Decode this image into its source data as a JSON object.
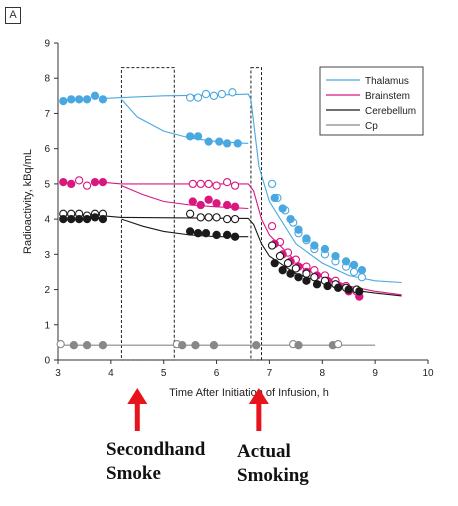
{
  "panel_label": "A",
  "annotations": {
    "secondhand": "Secondhand\nSmoke",
    "actual": "Actual\nSmoking"
  },
  "colors": {
    "thalamus": "#4aa8e0",
    "brainstem": "#d9177f",
    "cerebellum": "#1a1a1a",
    "cp": "#888888",
    "arrow": "#e8141c"
  },
  "chart_data": {
    "type": "scatter",
    "title": "",
    "xlabel": "Time After Initiation of Infusion, h",
    "ylabel": "Radioactivity, kBq/mL",
    "xlim": [
      3,
      10
    ],
    "ylim": [
      0,
      9
    ],
    "xticks": [
      3,
      4,
      5,
      6,
      7,
      8,
      9,
      10
    ],
    "yticks": [
      0,
      1,
      2,
      3,
      4,
      5,
      6,
      7,
      8,
      9
    ],
    "legend": {
      "position": "top-right"
    },
    "grid": false,
    "exposure_windows": [
      {
        "name": "Secondhand Smoke",
        "x": [
          4.2,
          5.2
        ]
      },
      {
        "name": "Actual Smoking",
        "x": [
          6.65,
          6.85
        ]
      }
    ],
    "series": [
      {
        "name": "Thalamus",
        "color": "#4aa8e0",
        "fit_baseline": [
          [
            3.8,
            7.42
          ],
          [
            4.2,
            7.45
          ],
          [
            5.0,
            7.5
          ],
          [
            6.0,
            7.52
          ],
          [
            6.6,
            7.55
          ],
          [
            6.65,
            7.4
          ],
          [
            6.8,
            5.5
          ],
          [
            7.0,
            4.5
          ],
          [
            7.5,
            3.3
          ],
          [
            8.0,
            2.75
          ],
          [
            8.5,
            2.4
          ],
          [
            9.0,
            2.25
          ],
          [
            9.5,
            2.2
          ]
        ],
        "fit_exposure": [
          [
            4.2,
            7.4
          ],
          [
            4.5,
            6.9
          ],
          [
            5.0,
            6.5
          ],
          [
            5.5,
            6.3
          ],
          [
            6.0,
            6.2
          ],
          [
            6.6,
            6.15
          ]
        ],
        "points": [
          {
            "x": 3.1,
            "y": 7.35,
            "f": 1
          },
          {
            "x": 3.25,
            "y": 7.4,
            "f": 1
          },
          {
            "x": 3.4,
            "y": 7.4,
            "f": 1
          },
          {
            "x": 3.55,
            "y": 7.4,
            "f": 1
          },
          {
            "x": 3.7,
            "y": 7.5,
            "f": 1
          },
          {
            "x": 3.85,
            "y": 7.4,
            "f": 1
          },
          {
            "x": 5.5,
            "y": 7.45,
            "f": 0
          },
          {
            "x": 5.65,
            "y": 7.45,
            "f": 0
          },
          {
            "x": 5.8,
            "y": 7.55,
            "f": 0
          },
          {
            "x": 5.95,
            "y": 7.5,
            "f": 0
          },
          {
            "x": 6.1,
            "y": 7.55,
            "f": 0
          },
          {
            "x": 6.3,
            "y": 7.6,
            "f": 0
          },
          {
            "x": 5.5,
            "y": 6.35,
            "f": 1
          },
          {
            "x": 5.65,
            "y": 6.35,
            "f": 1
          },
          {
            "x": 5.85,
            "y": 6.2,
            "f": 1
          },
          {
            "x": 6.05,
            "y": 6.2,
            "f": 1
          },
          {
            "x": 6.2,
            "y": 6.15,
            "f": 1
          },
          {
            "x": 6.4,
            "y": 6.15,
            "f": 1
          },
          {
            "x": 7.05,
            "y": 5.0,
            "f": 0
          },
          {
            "x": 7.15,
            "y": 4.6,
            "f": 0
          },
          {
            "x": 7.3,
            "y": 4.25,
            "f": 0
          },
          {
            "x": 7.45,
            "y": 3.9,
            "f": 0
          },
          {
            "x": 7.55,
            "y": 3.6,
            "f": 0
          },
          {
            "x": 7.7,
            "y": 3.4,
            "f": 0
          },
          {
            "x": 7.85,
            "y": 3.15,
            "f": 0
          },
          {
            "x": 8.05,
            "y": 3.0,
            "f": 0
          },
          {
            "x": 8.25,
            "y": 2.8,
            "f": 0
          },
          {
            "x": 8.45,
            "y": 2.65,
            "f": 0
          },
          {
            "x": 8.6,
            "y": 2.5,
            "f": 0
          },
          {
            "x": 8.75,
            "y": 2.35,
            "f": 0
          },
          {
            "x": 7.1,
            "y": 4.6,
            "f": 1
          },
          {
            "x": 7.25,
            "y": 4.3,
            "f": 1
          },
          {
            "x": 7.4,
            "y": 4.0,
            "f": 1
          },
          {
            "x": 7.55,
            "y": 3.7,
            "f": 1
          },
          {
            "x": 7.7,
            "y": 3.45,
            "f": 1
          },
          {
            "x": 7.85,
            "y": 3.25,
            "f": 1
          },
          {
            "x": 8.05,
            "y": 3.15,
            "f": 1
          },
          {
            "x": 8.25,
            "y": 2.95,
            "f": 1
          },
          {
            "x": 8.45,
            "y": 2.8,
            "f": 1
          },
          {
            "x": 8.6,
            "y": 2.7,
            "f": 1
          },
          {
            "x": 8.75,
            "y": 2.55,
            "f": 1
          }
        ]
      },
      {
        "name": "Brainstem",
        "color": "#d9177f",
        "fit_baseline": [
          [
            3.8,
            5.05
          ],
          [
            4.2,
            5.0
          ],
          [
            6.6,
            5.0
          ],
          [
            6.7,
            4.8
          ],
          [
            6.85,
            4.0
          ],
          [
            7.0,
            3.55
          ],
          [
            7.5,
            2.8
          ],
          [
            8.0,
            2.4
          ],
          [
            8.5,
            2.1
          ],
          [
            9.0,
            1.95
          ],
          [
            9.5,
            1.85
          ]
        ],
        "fit_exposure": [
          [
            4.2,
            4.95
          ],
          [
            4.6,
            4.7
          ],
          [
            5.0,
            4.5
          ],
          [
            5.5,
            4.4
          ],
          [
            6.0,
            4.35
          ],
          [
            6.6,
            4.3
          ]
        ],
        "points": [
          {
            "x": 3.1,
            "y": 5.05,
            "f": 1
          },
          {
            "x": 3.25,
            "y": 5.0,
            "f": 1
          },
          {
            "x": 3.4,
            "y": 5.1,
            "f": 0
          },
          {
            "x": 3.55,
            "y": 4.95,
            "f": 0
          },
          {
            "x": 3.7,
            "y": 5.05,
            "f": 1
          },
          {
            "x": 3.85,
            "y": 5.05,
            "f": 1
          },
          {
            "x": 5.55,
            "y": 5.0,
            "f": 0
          },
          {
            "x": 5.7,
            "y": 5.0,
            "f": 0
          },
          {
            "x": 5.85,
            "y": 5.0,
            "f": 0
          },
          {
            "x": 6.0,
            "y": 4.95,
            "f": 0
          },
          {
            "x": 6.2,
            "y": 5.05,
            "f": 0
          },
          {
            "x": 6.35,
            "y": 4.95,
            "f": 0
          },
          {
            "x": 5.55,
            "y": 4.5,
            "f": 1
          },
          {
            "x": 5.7,
            "y": 4.4,
            "f": 1
          },
          {
            "x": 5.85,
            "y": 4.55,
            "f": 1
          },
          {
            "x": 6.0,
            "y": 4.45,
            "f": 1
          },
          {
            "x": 6.2,
            "y": 4.4,
            "f": 1
          },
          {
            "x": 6.35,
            "y": 4.35,
            "f": 1
          },
          {
            "x": 7.05,
            "y": 3.8,
            "f": 0
          },
          {
            "x": 7.2,
            "y": 3.35,
            "f": 0
          },
          {
            "x": 7.35,
            "y": 3.05,
            "f": 0
          },
          {
            "x": 7.5,
            "y": 2.85,
            "f": 0
          },
          {
            "x": 7.7,
            "y": 2.65,
            "f": 0
          },
          {
            "x": 7.85,
            "y": 2.55,
            "f": 0
          },
          {
            "x": 8.05,
            "y": 2.4,
            "f": 0
          },
          {
            "x": 8.25,
            "y": 2.25,
            "f": 0
          },
          {
            "x": 8.45,
            "y": 2.1,
            "f": 0
          },
          {
            "x": 8.65,
            "y": 1.95,
            "f": 0
          },
          {
            "x": 7.1,
            "y": 3.3,
            "f": 1
          },
          {
            "x": 7.25,
            "y": 3.0,
            "f": 1
          },
          {
            "x": 7.4,
            "y": 2.8,
            "f": 1
          },
          {
            "x": 7.55,
            "y": 2.65,
            "f": 1
          },
          {
            "x": 7.7,
            "y": 2.5,
            "f": 1
          },
          {
            "x": 7.9,
            "y": 2.4,
            "f": 1
          },
          {
            "x": 8.1,
            "y": 2.25,
            "f": 1
          },
          {
            "x": 8.3,
            "y": 2.1,
            "f": 1
          },
          {
            "x": 8.5,
            "y": 1.95,
            "f": 1
          },
          {
            "x": 8.7,
            "y": 1.8,
            "f": 1
          }
        ]
      },
      {
        "name": "Cerebellum",
        "color": "#1a1a1a",
        "fit_baseline": [
          [
            3.8,
            4.1
          ],
          [
            4.2,
            4.05
          ],
          [
            6.6,
            4.02
          ],
          [
            6.7,
            3.85
          ],
          [
            6.85,
            3.3
          ],
          [
            7.0,
            2.95
          ],
          [
            7.5,
            2.45
          ],
          [
            8.0,
            2.2
          ],
          [
            8.5,
            2.0
          ],
          [
            9.0,
            1.9
          ],
          [
            9.5,
            1.82
          ]
        ],
        "fit_exposure": [
          [
            4.2,
            4.0
          ],
          [
            4.6,
            3.8
          ],
          [
            5.0,
            3.65
          ],
          [
            5.5,
            3.55
          ],
          [
            6.0,
            3.5
          ],
          [
            6.6,
            3.5
          ]
        ],
        "points": [
          {
            "x": 3.1,
            "y": 4.15,
            "f": 0
          },
          {
            "x": 3.25,
            "y": 4.15,
            "f": 0
          },
          {
            "x": 3.4,
            "y": 4.15,
            "f": 0
          },
          {
            "x": 3.55,
            "y": 4.1,
            "f": 0
          },
          {
            "x": 3.7,
            "y": 4.15,
            "f": 0
          },
          {
            "x": 3.85,
            "y": 4.15,
            "f": 0
          },
          {
            "x": 3.1,
            "y": 4.0,
            "f": 1
          },
          {
            "x": 3.25,
            "y": 4.0,
            "f": 1
          },
          {
            "x": 3.4,
            "y": 4.0,
            "f": 1
          },
          {
            "x": 3.55,
            "y": 4.0,
            "f": 1
          },
          {
            "x": 3.7,
            "y": 4.05,
            "f": 1
          },
          {
            "x": 3.85,
            "y": 4.0,
            "f": 1
          },
          {
            "x": 5.5,
            "y": 4.15,
            "f": 0
          },
          {
            "x": 5.7,
            "y": 4.05,
            "f": 0
          },
          {
            "x": 5.85,
            "y": 4.05,
            "f": 0
          },
          {
            "x": 6.0,
            "y": 4.05,
            "f": 0
          },
          {
            "x": 6.2,
            "y": 4.0,
            "f": 0
          },
          {
            "x": 6.35,
            "y": 4.0,
            "f": 0
          },
          {
            "x": 5.5,
            "y": 3.65,
            "f": 1
          },
          {
            "x": 5.65,
            "y": 3.6,
            "f": 1
          },
          {
            "x": 5.8,
            "y": 3.6,
            "f": 1
          },
          {
            "x": 6.0,
            "y": 3.55,
            "f": 1
          },
          {
            "x": 6.2,
            "y": 3.55,
            "f": 1
          },
          {
            "x": 6.35,
            "y": 3.5,
            "f": 1
          },
          {
            "x": 7.05,
            "y": 3.25,
            "f": 0
          },
          {
            "x": 7.2,
            "y": 2.95,
            "f": 0
          },
          {
            "x": 7.35,
            "y": 2.75,
            "f": 0
          },
          {
            "x": 7.5,
            "y": 2.6,
            "f": 0
          },
          {
            "x": 7.7,
            "y": 2.45,
            "f": 0
          },
          {
            "x": 7.85,
            "y": 2.35,
            "f": 0
          },
          {
            "x": 8.05,
            "y": 2.25,
            "f": 0
          },
          {
            "x": 8.25,
            "y": 2.15,
            "f": 0
          },
          {
            "x": 8.45,
            "y": 2.05,
            "f": 0
          },
          {
            "x": 8.65,
            "y": 2.0,
            "f": 0
          },
          {
            "x": 7.1,
            "y": 2.75,
            "f": 1
          },
          {
            "x": 7.25,
            "y": 2.55,
            "f": 1
          },
          {
            "x": 7.4,
            "y": 2.45,
            "f": 1
          },
          {
            "x": 7.55,
            "y": 2.35,
            "f": 1
          },
          {
            "x": 7.7,
            "y": 2.25,
            "f": 1
          },
          {
            "x": 7.9,
            "y": 2.15,
            "f": 1
          },
          {
            "x": 8.1,
            "y": 2.1,
            "f": 1
          },
          {
            "x": 8.3,
            "y": 2.05,
            "f": 1
          },
          {
            "x": 8.5,
            "y": 2.0,
            "f": 1
          },
          {
            "x": 8.7,
            "y": 1.95,
            "f": 1
          }
        ]
      },
      {
        "name": "Cp",
        "color": "#888888",
        "fit_baseline": [
          [
            3.0,
            0.42
          ],
          [
            9.0,
            0.42
          ]
        ],
        "fit_exposure": [],
        "points": [
          {
            "x": 3.05,
            "y": 0.45,
            "f": 0
          },
          {
            "x": 3.3,
            "y": 0.42,
            "f": 1
          },
          {
            "x": 3.55,
            "y": 0.42,
            "f": 1
          },
          {
            "x": 3.85,
            "y": 0.42,
            "f": 1
          },
          {
            "x": 5.25,
            "y": 0.45,
            "f": 0
          },
          {
            "x": 5.35,
            "y": 0.42,
            "f": 1
          },
          {
            "x": 5.6,
            "y": 0.42,
            "f": 1
          },
          {
            "x": 5.95,
            "y": 0.42,
            "f": 1
          },
          {
            "x": 6.75,
            "y": 0.42,
            "f": 1
          },
          {
            "x": 7.45,
            "y": 0.45,
            "f": 0
          },
          {
            "x": 7.55,
            "y": 0.42,
            "f": 1
          },
          {
            "x": 8.2,
            "y": 0.42,
            "f": 1
          },
          {
            "x": 8.3,
            "y": 0.45,
            "f": 0
          }
        ]
      }
    ]
  }
}
